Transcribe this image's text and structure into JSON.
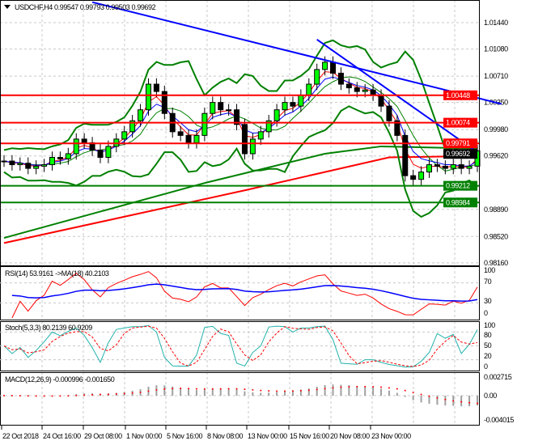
{
  "header": {
    "symbol": "USDCHF,H4",
    "ohlc": "0.99547 0.99793 0.99503 0.99692"
  },
  "colors": {
    "bull": "#000000",
    "bear": "#000000",
    "candle_body_up": "#00ff00",
    "up_wick": "#000000",
    "bb": "#008000",
    "ma_long": "#ff0000",
    "ma_mid": "#008000",
    "trend": "#0000ff",
    "level": "#ff0000",
    "support": "#008000"
  },
  "chart_data": {
    "type": "candlestick",
    "price_axis": {
      "ticks": [
        "1.01440",
        "1.01080",
        "1.00710",
        "1.00350",
        "0.99980",
        "0.99620",
        "0.98890",
        "0.98520",
        "0.98160"
      ],
      "range": [
        0.9812,
        1.0175
      ]
    },
    "time_axis": [
      "22 Oct 2018",
      "24 Oct 16:00",
      "29 Oct 08:00",
      "1 Nov 00:00",
      "5 Nov 16:00",
      "8 Nov 08:00",
      "13 Nov 00:00",
      "15 Nov 16:00",
      "20 Nov 08:00",
      "23 Nov 00:00"
    ],
    "closes": [
      0.9955,
      0.995,
      0.9952,
      0.9945,
      0.9948,
      0.995,
      0.996,
      0.9958,
      0.9965,
      0.9985,
      0.998,
      0.997,
      0.996,
      0.9975,
      0.9985,
      0.9995,
      1.001,
      1.0025,
      1.006,
      1.005,
      1.002,
      0.9995,
      0.999,
      0.998,
      0.999,
      1.002,
      1.0035,
      1.0025,
      1.0025,
      1.0005,
      0.9965,
      0.9985,
      0.9995,
      1.001,
      1.0025,
      1.0035,
      1.003,
      1.0045,
      1.006,
      1.008,
      1.009,
      1.0075,
      1.006,
      1.0055,
      1.005,
      1.0052,
      1.0045,
      1.003,
      1.001,
      0.999,
      0.9935,
      0.993,
      0.994,
      0.995,
      0.9948,
      0.9945,
      0.995,
      0.9945,
      0.9948,
      0.9969
    ],
    "levels": [
      {
        "price": 0.99212,
        "label": "0.99212",
        "color": "#008000"
      },
      {
        "price": 0.98984,
        "label": "0.98984",
        "color": "#008000"
      },
      {
        "price": 1.00448,
        "label": "1.00448",
        "color": "#ff0000"
      },
      {
        "price": 1.00074,
        "label": "1.00074",
        "color": "#ff0000"
      },
      {
        "price": 0.99791,
        "label": "0.99791",
        "color": "#ff0000"
      }
    ],
    "current_price": "0.99692",
    "ma_long": [
      [
        0,
        0.9843
      ],
      [
        30,
        0.9915
      ],
      [
        48,
        0.996
      ],
      [
        59,
        0.9962
      ]
    ],
    "ma_mid": [
      [
        0,
        0.985
      ],
      [
        25,
        0.9925
      ],
      [
        40,
        0.9965
      ],
      [
        47,
        0.9975
      ],
      [
        59,
        0.9972
      ]
    ],
    "trendlines": [
      [
        [
          11,
          1.0172
        ],
        [
          62,
          1.0033
        ]
      ],
      [
        [
          39,
          1.0121
        ],
        [
          59,
          0.9967
        ]
      ]
    ],
    "rsi": {
      "label": "RSI(14) 53.9161  ->MA(18) 40.2103",
      "ticks": [
        "100",
        "70",
        "30",
        "0"
      ]
    },
    "stoch": {
      "label": "Stoch(5,3,3) 80.2139 60.9209",
      "ticks": [
        "100",
        "80",
        "50",
        "20",
        "0"
      ]
    },
    "macd": {
      "label": "MACD(12,26,9) -0.000996 -0.001650",
      "ticks": [
        "0.002715",
        "0.00",
        "-0.004015"
      ]
    }
  }
}
